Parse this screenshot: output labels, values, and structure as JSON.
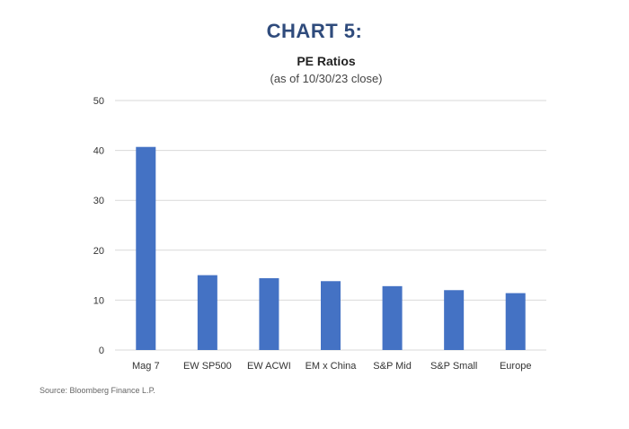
{
  "heading": "CHART 5:",
  "source": "Source:  Bloomberg Finance L.P.",
  "colors": {
    "bar": "#4472c4",
    "heading": "#2f4b7c",
    "grid": "#d9d9d9"
  },
  "chart_data": {
    "type": "bar",
    "title": "PE Ratios",
    "subtitle": "(as of 10/30/23 close)",
    "xlabel": "",
    "ylabel": "",
    "categories": [
      "Mag 7",
      "EW SP500",
      "EW ACWI",
      "EM x China",
      "S&P Mid",
      "S&P Small",
      "Europe"
    ],
    "values": [
      40.7,
      15.0,
      14.4,
      13.8,
      12.8,
      12.0,
      11.4
    ],
    "ylim": [
      0,
      50
    ],
    "yticks": [
      0,
      10,
      20,
      30,
      40,
      50
    ],
    "grid": true,
    "legend": "none"
  }
}
